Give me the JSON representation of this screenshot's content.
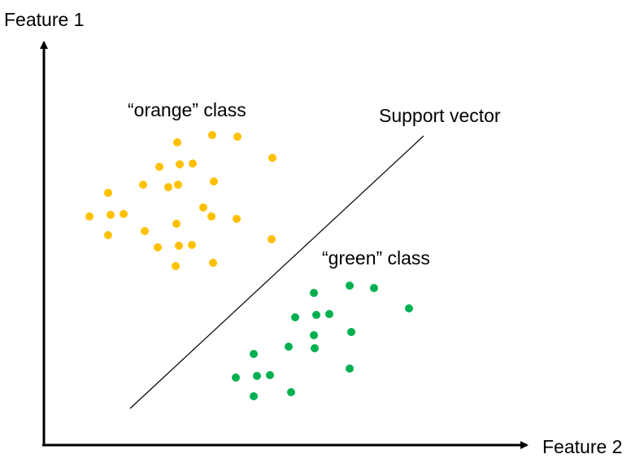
{
  "axes": {
    "y_label": "Feature 1",
    "x_label": "Feature 2"
  },
  "labels": {
    "orange_class": "“orange” class",
    "green_class": "“green” class",
    "support_vector": "Support vector"
  },
  "colors": {
    "orange": "#FFC000",
    "green": "#00B050",
    "axis": "#000000",
    "line": "#000000"
  },
  "chart_data": {
    "type": "scatter",
    "series": [
      {
        "name": "“orange” class",
        "points": [
          [
            218,
            175
          ],
          [
            261,
            166
          ],
          [
            292,
            168
          ],
          [
            335,
            194
          ],
          [
            196,
            205
          ],
          [
            221,
            202
          ],
          [
            237,
            201
          ],
          [
            176,
            227
          ],
          [
            207,
            230
          ],
          [
            219,
            227
          ],
          [
            263,
            223
          ],
          [
            133,
            237
          ],
          [
            250,
            255
          ],
          [
            110,
            266
          ],
          [
            136,
            264
          ],
          [
            152,
            263
          ],
          [
            260,
            266
          ],
          [
            291,
            269
          ],
          [
            217,
            275
          ],
          [
            133,
            289
          ],
          [
            178,
            284
          ],
          [
            334,
            294
          ],
          [
            194,
            304
          ],
          [
            220,
            302
          ],
          [
            236,
            301
          ],
          [
            216,
            327
          ],
          [
            262,
            323
          ]
        ]
      },
      {
        "name": "“green” class",
        "points": [
          [
            430,
            351
          ],
          [
            460,
            354
          ],
          [
            386,
            360
          ],
          [
            503,
            379
          ],
          [
            363,
            390
          ],
          [
            389,
            387
          ],
          [
            405,
            386
          ],
          [
            432,
            408
          ],
          [
            386,
            412
          ],
          [
            355,
            426
          ],
          [
            387,
            428
          ],
          [
            312,
            435
          ],
          [
            290,
            464
          ],
          [
            316,
            462
          ],
          [
            332,
            461
          ],
          [
            430,
            453
          ],
          [
            312,
            487
          ],
          [
            358,
            482
          ]
        ]
      }
    ],
    "support_vector": {
      "from": [
        160,
        502
      ],
      "to": [
        521,
        167
      ]
    }
  }
}
